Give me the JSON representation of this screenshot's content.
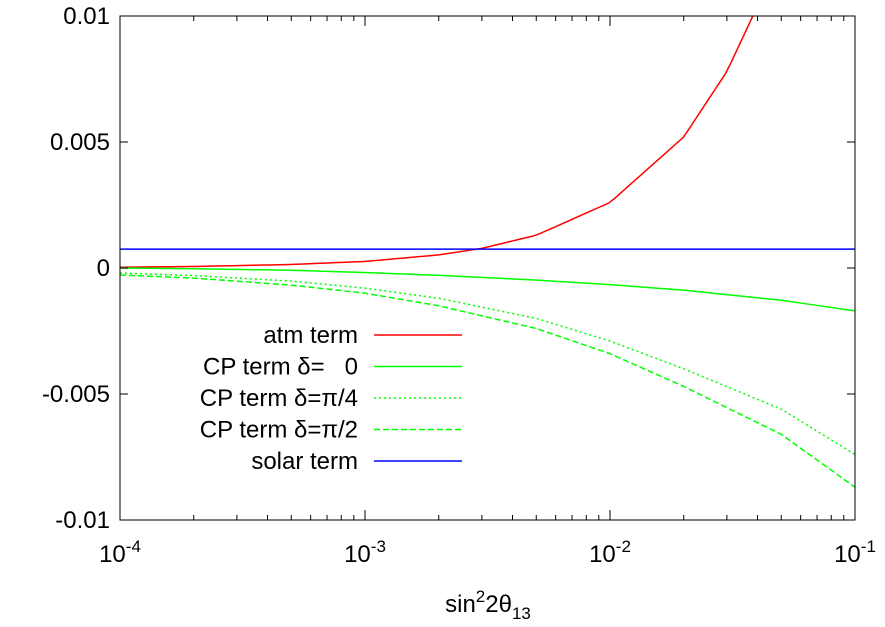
{
  "chart_data": {
    "type": "line",
    "xlabel": {
      "base": "sin",
      "sup": "2",
      "mid": "2θ",
      "sub": "13"
    },
    "ylabel": "",
    "x_scale": "log",
    "xlim": [
      0.0001,
      0.1
    ],
    "ylim": [
      -0.01,
      0.01
    ],
    "grid": false,
    "legend_position": "bottom-left",
    "x_ticks": [
      {
        "value": 0.0001,
        "base": "10",
        "exp": "-4"
      },
      {
        "value": 0.001,
        "base": "10",
        "exp": "-3"
      },
      {
        "value": 0.01,
        "base": "10",
        "exp": "-2"
      },
      {
        "value": 0.1,
        "base": "10",
        "exp": "-1"
      }
    ],
    "y_ticks": [
      {
        "value": 0.01,
        "label": "0.01"
      },
      {
        "value": 0.005,
        "label": "0.005"
      },
      {
        "value": 0,
        "label": "0"
      },
      {
        "value": -0.005,
        "label": "-0.005"
      },
      {
        "value": -0.01,
        "label": "-0.01"
      }
    ],
    "series": [
      {
        "name": "atm term",
        "color": "#ff0000",
        "dash": "solid",
        "x": [
          0.0001,
          0.0002,
          0.0005,
          0.001,
          0.002,
          0.003,
          0.005,
          0.01,
          0.02,
          0.03,
          0.04
        ],
        "values": [
          3e-05,
          6e-05,
          0.00014,
          0.00026,
          0.00052,
          0.00078,
          0.0013,
          0.0026,
          0.0052,
          0.0078,
          0.0104
        ]
      },
      {
        "name": "CP term δ=   0",
        "color": "#00ff00",
        "dash": "solid",
        "x": [
          0.0001,
          0.0002,
          0.0005,
          0.001,
          0.002,
          0.005,
          0.01,
          0.02,
          0.05,
          0.1
        ],
        "values": [
          0.0,
          -3e-05,
          -9e-05,
          -0.00018,
          -0.00029,
          -0.00048,
          -0.00066,
          -0.00088,
          -0.00128,
          -0.0017
        ]
      },
      {
        "name": "CP term δ=π/4",
        "color": "#00ff00",
        "dash": "dotted",
        "x": [
          0.0001,
          0.0002,
          0.0005,
          0.001,
          0.002,
          0.005,
          0.01,
          0.02,
          0.05,
          0.1
        ],
        "values": [
          -0.0002,
          -0.0003,
          -0.00052,
          -0.0008,
          -0.0012,
          -0.002,
          -0.0029,
          -0.004,
          -0.0056,
          -0.0074
        ]
      },
      {
        "name": "CP term δ=π/2",
        "color": "#00ff00",
        "dash": "dashed",
        "x": [
          0.0001,
          0.0002,
          0.0005,
          0.001,
          0.002,
          0.005,
          0.01,
          0.02,
          0.05,
          0.1
        ],
        "values": [
          -0.00028,
          -0.0004,
          -0.00068,
          -0.001,
          -0.0015,
          -0.0024,
          -0.0034,
          -0.0047,
          -0.0066,
          -0.0087
        ]
      },
      {
        "name": "solar term",
        "color": "#0000ff",
        "dash": "solid",
        "x": [
          0.0001,
          0.1
        ],
        "values": [
          0.00075,
          0.00075
        ]
      }
    ]
  }
}
